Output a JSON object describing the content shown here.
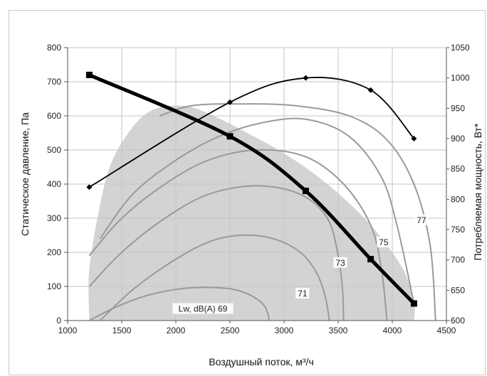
{
  "chart_data": {
    "type": "line",
    "xlabel": "Воздушный поток, м³/ч",
    "ylabel": "Статическое давление, Па",
    "y2label": "Потребляемая мощность, Вт*",
    "xlim": [
      1000,
      4500
    ],
    "ylim": [
      0,
      800
    ],
    "y2lim": [
      600,
      1050
    ],
    "x_ticks": [
      "1000",
      "1500",
      "2000",
      "2500",
      "3000",
      "3500",
      "4000",
      "4500"
    ],
    "y_ticks": [
      "0",
      "100",
      "200",
      "300",
      "400",
      "500",
      "600",
      "700",
      "800"
    ],
    "y2_ticks": [
      "600",
      "650",
      "700",
      "750",
      "800",
      "850",
      "900",
      "950",
      "1000",
      "1050"
    ],
    "grid": true,
    "colors": {
      "pressure": "#000000",
      "power": "#000000",
      "contour": "#9a9a9a",
      "area": "#d3d3d3",
      "grid": "#c4c4c4"
    },
    "series": [
      {
        "key": "pressure",
        "axis": "left",
        "marker": "square",
        "x": [
          1200,
          2500,
          3200,
          3800,
          4200
        ],
        "y": [
          720,
          540,
          380,
          180,
          50
        ]
      },
      {
        "key": "power",
        "axis": "right",
        "marker": "diamond",
        "x": [
          1200,
          2500,
          3200,
          3800,
          4200
        ],
        "y": [
          820,
          960,
          1000,
          980,
          900
        ]
      }
    ],
    "area_boundary": {
      "x": [
        1200,
        1200,
        1300,
        1400,
        1550,
        1700,
        1850,
        2000,
        2150,
        2350,
        2600,
        3000,
        3400,
        3800,
        4100,
        4200,
        4200
      ],
      "y": [
        0,
        150,
        340,
        460,
        545,
        600,
        625,
        630,
        625,
        600,
        560,
        490,
        400,
        280,
        150,
        50,
        0
      ]
    },
    "contours": [
      {
        "label": "Lw, dB(A) 69",
        "x": [
          1200,
          1450,
          1750,
          2100,
          2450,
          2650,
          2800,
          2850,
          2860
        ],
        "y": [
          0,
          40,
          75,
          95,
          95,
          80,
          50,
          20,
          0
        ]
      },
      {
        "label": "71",
        "x": [
          1300,
          1600,
          1950,
          2300,
          2600,
          2900,
          3150,
          3300,
          3380,
          3420
        ],
        "y": [
          0,
          90,
          170,
          230,
          250,
          240,
          200,
          140,
          70,
          0
        ]
      },
      {
        "label": "73",
        "x": [
          1200,
          1500,
          1900,
          2300,
          2750,
          3150,
          3400,
          3500,
          3540,
          3550
        ],
        "y": [
          100,
          200,
          300,
          370,
          395,
          370,
          300,
          190,
          90,
          0
        ]
      },
      {
        "label": "75",
        "x": [
          1200,
          1500,
          1900,
          2300,
          2750,
          3200,
          3550,
          3800,
          3900,
          3950
        ],
        "y": [
          190,
          300,
          400,
          470,
          500,
          480,
          400,
          280,
          150,
          0
        ]
      },
      {
        "label": "",
        "x": [
          1300,
          1600,
          2000,
          2400,
          2800,
          3200,
          3600,
          3900,
          4050,
          4200
        ],
        "y": [
          240,
          370,
          470,
          540,
          580,
          590,
          540,
          420,
          270,
          50
        ]
      },
      {
        "label": "77",
        "x": [
          1850,
          2150,
          2600,
          3100,
          3600,
          3950,
          4200,
          4350,
          4400
        ],
        "y": [
          600,
          630,
          635,
          630,
          600,
          530,
          400,
          220,
          0
        ]
      }
    ],
    "contour_labels": [
      {
        "text": "Lw, dB(A) 69",
        "x": 2250,
        "y": 30
      },
      {
        "text": "71",
        "x": 3170,
        "y": 75
      },
      {
        "text": "73",
        "x": 3520,
        "y": 165
      },
      {
        "text": "75",
        "x": 3920,
        "y": 225
      },
      {
        "text": "77",
        "x": 4270,
        "y": 290
      }
    ]
  }
}
